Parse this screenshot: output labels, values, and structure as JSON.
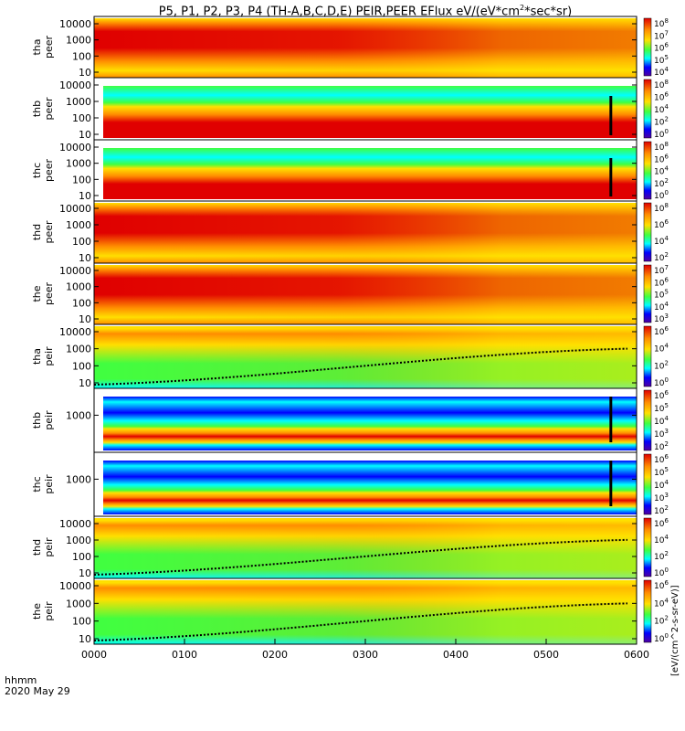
{
  "title_pre": "P5, P1, P2, P3, P4 (TH-A,B,C,D,E) PEIR,PEER EFlux eV/(eV*cm",
  "title_sup1": "2",
  "title_mid": "*sec*sr)",
  "xaxis": {
    "label": "hhmm",
    "date": "2020 May 29",
    "ticks": [
      "0000",
      "0100",
      "0200",
      "0300",
      "0400",
      "0500",
      "0600"
    ]
  },
  "colorbar_unit": "[eV/(cm^2-s-sr-eV)]",
  "colors": {
    "red": "#e00000",
    "orange": "#ff8c00",
    "yellow": "#ffe000",
    "green": "#40ff40",
    "cyan": "#00ffff",
    "blue": "#0000ff",
    "black": "#000000"
  },
  "chart_data": {
    "type": "heatmap",
    "x_range": [
      "00:00",
      "06:00"
    ],
    "panels": [
      {
        "probe": "tha",
        "species": "peer",
        "ylabel": [
          "tha",
          "peer"
        ],
        "yticks": [
          "10000",
          "1000",
          "100",
          "10"
        ],
        "cbar_ticks": [
          "10^8",
          "10^7",
          "10^6",
          "10^5",
          "10^4"
        ]
      },
      {
        "probe": "thb",
        "species": "peer",
        "ylabel": [
          "thb",
          "peer"
        ],
        "yticks": [
          "10000",
          "1000",
          "100",
          "10"
        ],
        "cbar_ticks": [
          "10^8",
          "10^6",
          "10^4",
          "10^2",
          "10^0"
        ]
      },
      {
        "probe": "thc",
        "species": "peer",
        "ylabel": [
          "thc",
          "peer"
        ],
        "yticks": [
          "10000",
          "1000",
          "100",
          "10"
        ],
        "cbar_ticks": [
          "10^8",
          "10^6",
          "10^4",
          "10^2",
          "10^0"
        ]
      },
      {
        "probe": "thd",
        "species": "peer",
        "ylabel": [
          "thd",
          "peer"
        ],
        "yticks": [
          "10000",
          "1000",
          "100",
          "10"
        ],
        "cbar_ticks": [
          "10^8",
          "10^6",
          "10^4",
          "10^2"
        ]
      },
      {
        "probe": "the",
        "species": "peer",
        "ylabel": [
          "the",
          "peer"
        ],
        "yticks": [
          "10000",
          "1000",
          "100",
          "10"
        ],
        "cbar_ticks": [
          "10^7",
          "10^6",
          "10^5",
          "10^4",
          "10^3"
        ]
      },
      {
        "probe": "tha",
        "species": "peir",
        "ylabel": [
          "tha",
          "peir"
        ],
        "yticks": [
          "10000",
          "1000",
          "100",
          "10"
        ],
        "cbar_ticks": [
          "10^6",
          "10^4",
          "10^2",
          "10^0"
        ]
      },
      {
        "probe": "thb",
        "species": "peir",
        "ylabel": [
          "thb",
          "peir"
        ],
        "yticks": [
          "1000"
        ],
        "cbar_ticks": [
          "10^6",
          "10^5",
          "10^4",
          "10^3",
          "10^2"
        ]
      },
      {
        "probe": "thc",
        "species": "peir",
        "ylabel": [
          "thc",
          "peir"
        ],
        "yticks": [
          "1000"
        ],
        "cbar_ticks": [
          "10^6",
          "10^5",
          "10^4",
          "10^3",
          "10^2"
        ]
      },
      {
        "probe": "thd",
        "species": "peir",
        "ylabel": [
          "thd",
          "peir"
        ],
        "yticks": [
          "10000",
          "1000",
          "100",
          "10"
        ],
        "cbar_ticks": [
          "10^6",
          "10^4",
          "10^2",
          "10^0"
        ]
      },
      {
        "probe": "the",
        "species": "peir",
        "ylabel": [
          "the",
          "peir"
        ],
        "yticks": [
          "10000",
          "1000",
          "100",
          "10"
        ],
        "cbar_ticks": [
          "10^6",
          "10^4",
          "10^2",
          "10^0"
        ]
      }
    ]
  }
}
